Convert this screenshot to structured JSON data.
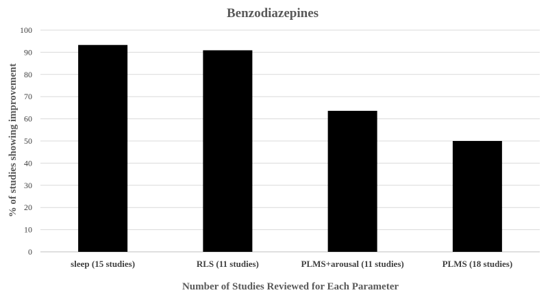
{
  "chart_data": {
    "type": "bar",
    "title": "Benzodiazepines",
    "xlabel": "Number of Studies Reviewed for Each Parameter",
    "ylabel": "% of studies showing improvement",
    "categories": [
      "sleep (15 studies)",
      "RLS (11 studies)",
      "PLMS+arousal (11 studies)",
      "PLMS (18 studies)"
    ],
    "series": [
      {
        "values": [
          93.3,
          90.9,
          63.6,
          50.0
        ]
      }
    ],
    "ylim": [
      0,
      100
    ],
    "yticks": [
      0,
      10,
      20,
      30,
      40,
      50,
      60,
      70,
      80,
      90,
      100
    ],
    "grid": true,
    "legend": "none",
    "bar_color": "#000000"
  }
}
